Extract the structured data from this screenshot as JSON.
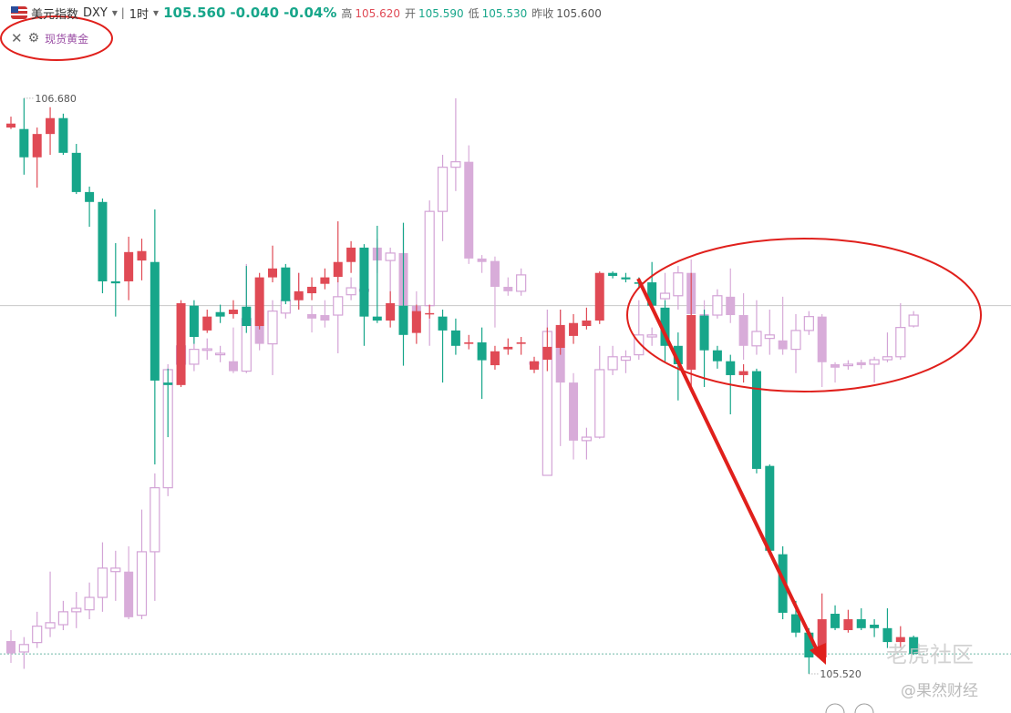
{
  "header": {
    "symbol": "DXY",
    "interval": "1时",
    "price": "105.560",
    "change": "-0.040",
    "change_pct": "-0.04%",
    "stats": [
      {
        "label": "高",
        "value": "105.620"
      },
      {
        "label": "开",
        "value": "105.590"
      },
      {
        "label": "低",
        "value": "105.530"
      },
      {
        "label": "昨收",
        "value": "105.600"
      }
    ]
  },
  "watermarks": [
    "老虎社区",
    "@果然财经"
  ],
  "chart_data": {
    "type": "candlestick",
    "ylim": [
      105.441,
      106.823
    ],
    "max_label": {
      "value": 106.68,
      "label": "106.680"
    },
    "min_label": {
      "value": 105.52,
      "label": "105.520"
    },
    "last_price": 105.56,
    "ref_line": 106.262,
    "series": [
      {
        "name": "美元指数",
        "up_color": "#e04a55",
        "down_color": "#17a68a",
        "hollow_up": false,
        "ohlc": [
          [
            106.621,
            106.643,
            106.618,
            106.629
          ],
          [
            106.618,
            106.68,
            106.526,
            106.561
          ],
          [
            106.561,
            106.621,
            106.5,
            106.608
          ],
          [
            106.608,
            106.662,
            106.566,
            106.64
          ],
          [
            106.64,
            106.649,
            106.566,
            106.57
          ],
          [
            106.57,
            106.588,
            106.487,
            106.491
          ],
          [
            106.491,
            106.502,
            106.421,
            106.471
          ],
          [
            106.471,
            106.478,
            106.287,
            106.311
          ],
          [
            106.311,
            106.388,
            106.24,
            106.307
          ],
          [
            106.311,
            106.401,
            106.273,
            106.37
          ],
          [
            106.353,
            106.397,
            106.313,
            106.372
          ],
          [
            106.35,
            106.456,
            105.942,
            106.111
          ],
          [
            106.107,
            106.135,
            105.997,
            106.102
          ],
          [
            106.102,
            106.273,
            106.098,
            106.267
          ],
          [
            106.262,
            106.273,
            106.185,
            106.199
          ],
          [
            106.212,
            106.254,
            106.207,
            106.24
          ],
          [
            106.249,
            106.264,
            106.227,
            106.24
          ],
          [
            106.245,
            106.273,
            106.236,
            106.254
          ],
          [
            106.26,
            106.342,
            106.207,
            106.221
          ],
          [
            106.221,
            106.328,
            106.214,
            106.319
          ],
          [
            106.319,
            106.383,
            106.309,
            106.337
          ],
          [
            106.339,
            106.346,
            106.265,
            106.271
          ],
          [
            106.273,
            106.328,
            106.254,
            106.291
          ],
          [
            106.287,
            106.319,
            106.273,
            106.3
          ],
          [
            106.306,
            106.337,
            106.295,
            106.319
          ],
          [
            106.32,
            106.432,
            106.309,
            106.35
          ],
          [
            106.35,
            106.392,
            106.328,
            106.379
          ],
          [
            106.379,
            106.386,
            106.181,
            106.24
          ],
          [
            106.24,
            106.423,
            106.227,
            106.232
          ],
          [
            106.232,
            106.291,
            106.218,
            106.267
          ],
          [
            106.262,
            106.429,
            106.141,
            106.203
          ],
          [
            106.207,
            106.264,
            106.185,
            106.251
          ],
          [
            106.245,
            106.264,
            106.236,
            106.247
          ],
          [
            106.24,
            106.254,
            106.107,
            106.212
          ],
          [
            106.212,
            106.236,
            106.163,
            106.181
          ],
          [
            106.185,
            106.203,
            106.174,
            106.188
          ],
          [
            106.188,
            106.218,
            106.074,
            106.152
          ],
          [
            106.142,
            106.181,
            106.133,
            106.17
          ],
          [
            106.174,
            106.196,
            106.163,
            106.179
          ],
          [
            106.185,
            106.199,
            106.163,
            106.188
          ],
          [
            106.133,
            106.159,
            106.126,
            106.15
          ],
          [
            106.153,
            106.218,
            106.13,
            106.179
          ],
          [
            106.177,
            106.254,
            106.163,
            106.223
          ],
          [
            106.201,
            106.245,
            106.185,
            106.227
          ],
          [
            106.221,
            106.258,
            106.214,
            106.232
          ],
          [
            106.232,
            106.331,
            106.225,
            106.328
          ],
          [
            106.328,
            106.331,
            106.317,
            106.322
          ],
          [
            106.319,
            106.328,
            106.309,
            106.315
          ],
          [
            106.309,
            106.319,
            106.3,
            106.306
          ],
          [
            106.309,
            106.35,
            106.254,
            106.262
          ],
          [
            106.258,
            106.273,
            106.148,
            106.181
          ],
          [
            106.181,
            106.208,
            106.071,
            106.144
          ],
          [
            106.133,
            106.328,
            106.098,
            106.243
          ],
          [
            106.242,
            106.254,
            106.098,
            106.172
          ],
          [
            106.172,
            106.181,
            106.135,
            106.15
          ],
          [
            106.15,
            106.163,
            106.043,
            106.122
          ],
          [
            106.122,
            106.144,
            106.107,
            106.13
          ],
          [
            106.13,
            106.135,
            105.924,
            105.933
          ],
          [
            105.939,
            105.942,
            105.759,
            105.768
          ],
          [
            105.761,
            105.777,
            105.63,
            105.643
          ],
          [
            105.64,
            105.667,
            105.594,
            105.603
          ],
          [
            105.603,
            105.612,
            105.52,
            105.553
          ],
          [
            105.553,
            105.682,
            105.546,
            105.63
          ],
          [
            105.641,
            105.658,
            105.608,
            105.612
          ],
          [
            105.608,
            105.649,
            105.603,
            105.63
          ],
          [
            105.63,
            105.652,
            105.608,
            105.612
          ],
          [
            105.619,
            105.63,
            105.594,
            105.612
          ],
          [
            105.612,
            105.652,
            105.572,
            105.584
          ],
          [
            105.584,
            105.616,
            105.572,
            105.594
          ],
          [
            105.594,
            105.597,
            105.558,
            105.56
          ]
        ]
      },
      {
        "name": "现货黄金",
        "up_color": "#d3a3d6",
        "down_color": "#d8acd9",
        "hollow_up": true,
        "ohlc": [
          [
            105.586,
            105.608,
            105.542,
            105.561
          ],
          [
            105.564,
            105.594,
            105.53,
            105.579
          ],
          [
            105.583,
            105.645,
            105.572,
            105.616
          ],
          [
            105.612,
            105.726,
            105.594,
            105.623
          ],
          [
            105.619,
            105.667,
            105.608,
            105.645
          ],
          [
            105.645,
            105.685,
            105.612,
            105.652
          ],
          [
            105.649,
            105.704,
            105.63,
            105.674
          ],
          [
            105.674,
            105.785,
            105.645,
            105.733
          ],
          [
            105.726,
            105.768,
            105.667,
            105.733
          ],
          [
            105.726,
            105.777,
            105.63,
            105.634
          ],
          [
            105.638,
            105.851,
            105.63,
            105.766
          ],
          [
            105.766,
            105.924,
            105.667,
            105.895
          ],
          [
            105.895,
            106.144,
            105.878,
            106.133
          ],
          [
            106.144,
            106.236,
            106.107,
            106.181
          ],
          [
            106.144,
            106.199,
            106.13,
            106.174
          ],
          [
            106.172,
            106.196,
            106.153,
            106.175
          ],
          [
            106.163,
            106.181,
            106.148,
            106.166
          ],
          [
            106.15,
            106.218,
            106.126,
            106.13
          ],
          [
            106.13,
            106.346,
            106.126,
            106.236
          ],
          [
            106.254,
            106.273,
            106.172,
            106.185
          ],
          [
            106.185,
            106.273,
            106.122,
            106.251
          ],
          [
            106.247,
            106.291,
            106.236,
            106.273
          ],
          [
            106.287,
            106.328,
            106.254,
            106.273
          ],
          [
            106.245,
            106.262,
            106.208,
            106.236
          ],
          [
            106.243,
            106.273,
            106.218,
            106.232
          ],
          [
            106.243,
            106.328,
            106.166,
            106.28
          ],
          [
            106.284,
            106.319,
            106.273,
            106.298
          ],
          [
            106.291,
            106.328,
            106.263,
            106.295
          ],
          [
            106.379,
            106.397,
            106.328,
            106.353
          ],
          [
            106.353,
            106.379,
            106.254,
            106.368
          ],
          [
            106.368,
            106.419,
            106.254,
            106.262
          ],
          [
            106.262,
            106.291,
            106.218,
            106.236
          ],
          [
            106.262,
            106.474,
            106.181,
            106.452
          ],
          [
            106.452,
            106.566,
            106.392,
            106.541
          ],
          [
            106.541,
            106.68,
            106.493,
            106.552
          ],
          [
            106.552,
            106.585,
            106.346,
            106.357
          ],
          [
            106.357,
            106.364,
            106.328,
            106.35
          ],
          [
            106.352,
            106.361,
            106.218,
            106.3
          ],
          [
            106.3,
            106.319,
            106.282,
            106.291
          ],
          [
            106.291,
            106.337,
            106.282,
            106.324
          ],
          [
            106.144,
            106.153,
            106.135,
            106.148
          ],
          [
            105.92,
            106.254,
            105.92,
            106.21
          ],
          [
            106.218,
            106.254,
            105.979,
            106.107
          ],
          [
            106.107,
            106.126,
            105.952,
            105.99
          ],
          [
            105.99,
            106.016,
            105.952,
            105.997
          ],
          [
            105.997,
            106.181,
            105.994,
            106.133
          ],
          [
            106.133,
            106.181,
            106.122,
            106.159
          ],
          [
            106.152,
            106.172,
            106.126,
            106.159
          ],
          [
            106.163,
            106.273,
            106.153,
            106.203
          ],
          [
            106.199,
            106.218,
            106.181,
            106.203
          ],
          [
            106.276,
            106.328,
            106.273,
            106.287
          ],
          [
            106.282,
            106.342,
            106.254,
            106.328
          ],
          [
            106.328,
            106.355,
            106.236,
            106.245
          ],
          [
            106.245,
            106.273,
            106.218,
            106.236
          ],
          [
            106.243,
            106.295,
            106.236,
            106.282
          ],
          [
            106.28,
            106.337,
            106.227,
            106.243
          ],
          [
            106.243,
            106.287,
            106.153,
            106.181
          ],
          [
            106.181,
            106.273,
            106.163,
            106.21
          ],
          [
            106.196,
            106.254,
            106.163,
            106.203
          ],
          [
            106.192,
            106.28,
            106.163,
            106.174
          ],
          [
            106.174,
            106.245,
            106.126,
            106.212
          ],
          [
            106.212,
            106.251,
            106.203,
            106.24
          ],
          [
            106.24,
            106.245,
            106.098,
            106.148
          ],
          [
            106.144,
            106.148,
            106.107,
            106.137
          ],
          [
            106.141,
            106.152,
            106.133,
            106.144
          ],
          [
            106.148,
            106.153,
            106.135,
            106.142
          ],
          [
            106.144,
            106.159,
            106.107,
            106.153
          ],
          [
            106.153,
            106.208,
            106.148,
            106.159
          ],
          [
            106.159,
            106.267,
            106.153,
            106.218
          ],
          [
            106.221,
            106.251,
            106.218,
            106.243
          ]
        ]
      }
    ]
  }
}
